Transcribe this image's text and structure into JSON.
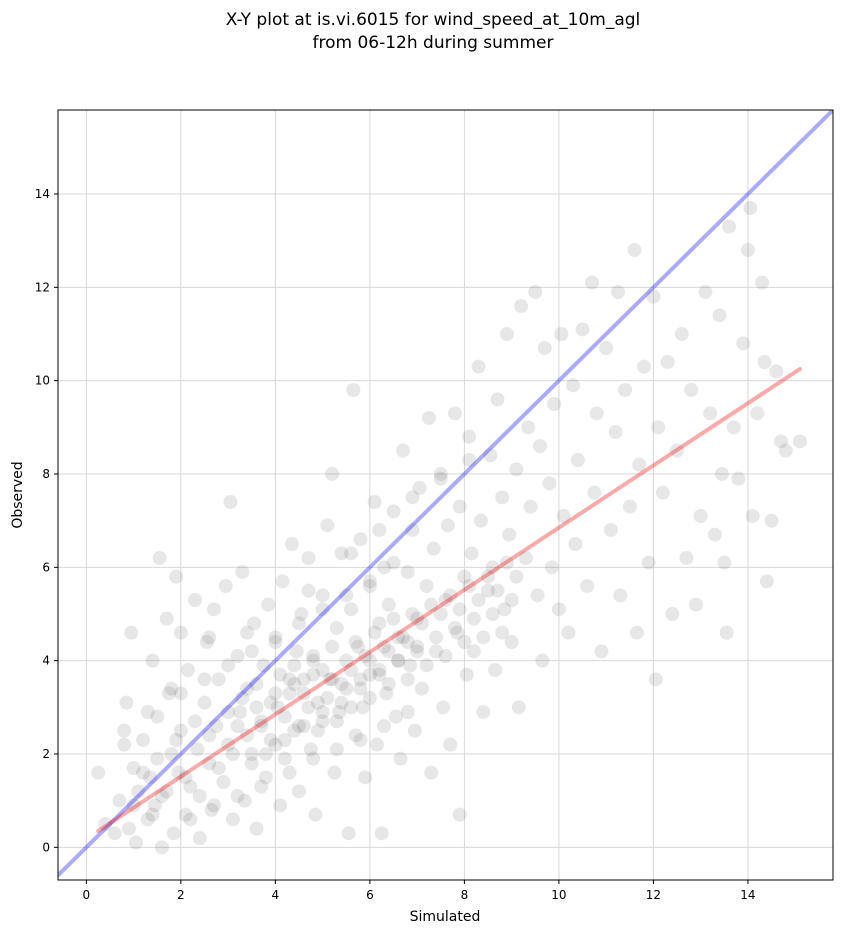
{
  "chart_data": {
    "type": "scatter",
    "title_lines": [
      "X-Y plot at is.vi.6015 for wind_speed_at_10m_agl",
      "from 06-12h during summer"
    ],
    "xlabel": "Simulated",
    "ylabel": "Observed",
    "xlim": [
      -0.6,
      15.8
    ],
    "ylim": [
      -0.7,
      15.8
    ],
    "xticks": [
      0,
      2,
      4,
      6,
      8,
      10,
      12,
      14
    ],
    "yticks": [
      0,
      2,
      4,
      6,
      8,
      10,
      12,
      14
    ],
    "grid": true,
    "marker_color": "#444444",
    "marker_alpha": 0.13,
    "lines": [
      {
        "kind": "one-to-one",
        "color": "#0000ee",
        "alpha": 0.33,
        "x": [
          -0.6,
          15.8
        ],
        "y": [
          -0.6,
          15.8
        ]
      },
      {
        "kind": "regression-fit",
        "color": "#ee0000",
        "alpha": 0.33,
        "x": [
          0.25,
          15.1
        ],
        "y": [
          0.35,
          10.25
        ]
      }
    ],
    "points": [
      [
        0.25,
        1.6
      ],
      [
        0.4,
        0.5
      ],
      [
        0.6,
        0.3
      ],
      [
        0.7,
        1.0
      ],
      [
        0.8,
        2.5
      ],
      [
        0.8,
        2.2
      ],
      [
        0.85,
        3.1
      ],
      [
        0.9,
        0.4
      ],
      [
        0.95,
        4.6
      ],
      [
        1.0,
        1.7
      ],
      [
        1.05,
        0.1
      ],
      [
        1.1,
        1.2
      ],
      [
        1.2,
        2.3
      ],
      [
        1.3,
        0.6
      ],
      [
        1.35,
        1.5
      ],
      [
        1.4,
        4.0
      ],
      [
        1.45,
        0.9
      ],
      [
        1.5,
        2.8
      ],
      [
        1.55,
        6.2
      ],
      [
        1.6,
        1.1
      ],
      [
        1.6,
        0.0
      ],
      [
        1.7,
        4.9
      ],
      [
        1.75,
        3.3
      ],
      [
        1.8,
        2.0
      ],
      [
        1.85,
        0.3
      ],
      [
        1.9,
        5.8
      ],
      [
        1.95,
        1.6
      ],
      [
        2.0,
        4.6
      ],
      [
        2.0,
        2.5
      ],
      [
        2.1,
        0.7
      ],
      [
        2.15,
        3.8
      ],
      [
        2.2,
        1.3
      ],
      [
        2.3,
        5.3
      ],
      [
        2.35,
        2.1
      ],
      [
        2.4,
        0.2
      ],
      [
        2.5,
        3.1
      ],
      [
        2.55,
        4.4
      ],
      [
        2.6,
        1.8
      ],
      [
        2.65,
        0.8
      ],
      [
        2.7,
        5.1
      ],
      [
        2.75,
        2.6
      ],
      [
        2.8,
        3.6
      ],
      [
        2.9,
        1.4
      ],
      [
        2.95,
        5.6
      ],
      [
        3.0,
        2.2
      ],
      [
        3.05,
        7.4
      ],
      [
        3.1,
        0.6
      ],
      [
        3.2,
        4.1
      ],
      [
        3.25,
        2.9
      ],
      [
        3.3,
        5.9
      ],
      [
        3.35,
        1.0
      ],
      [
        3.4,
        3.4
      ],
      [
        3.5,
        2.0
      ],
      [
        3.55,
        4.8
      ],
      [
        3.6,
        0.4
      ],
      [
        3.7,
        2.7
      ],
      [
        3.75,
        3.9
      ],
      [
        3.8,
        1.5
      ],
      [
        3.85,
        5.2
      ],
      [
        3.9,
        2.3
      ],
      [
        4.0,
        4.5
      ],
      [
        4.05,
        3.0
      ],
      [
        4.1,
        0.9
      ],
      [
        4.15,
        5.7
      ],
      [
        4.2,
        1.9
      ],
      [
        4.3,
        3.6
      ],
      [
        4.35,
        6.5
      ],
      [
        4.4,
        2.5
      ],
      [
        4.45,
        4.2
      ],
      [
        4.5,
        1.2
      ],
      [
        4.55,
        5.0
      ],
      [
        4.6,
        3.3
      ],
      [
        4.7,
        6.2
      ],
      [
        4.75,
        2.1
      ],
      [
        4.8,
        4.0
      ],
      [
        4.85,
        0.7
      ],
      [
        4.9,
        3.1
      ],
      [
        5.0,
        5.4
      ],
      [
        5.0,
        2.7
      ],
      [
        5.1,
        6.9
      ],
      [
        5.15,
        3.6
      ],
      [
        5.2,
        8.0
      ],
      [
        5.25,
        1.6
      ],
      [
        5.3,
        4.7
      ],
      [
        5.35,
        2.9
      ],
      [
        5.4,
        6.3
      ],
      [
        5.5,
        3.4
      ],
      [
        5.55,
        0.3
      ],
      [
        5.6,
        5.1
      ],
      [
        5.65,
        9.8
      ],
      [
        5.7,
        2.4
      ],
      [
        5.75,
        4.3
      ],
      [
        5.8,
        6.6
      ],
      [
        5.85,
        3.0
      ],
      [
        5.9,
        1.5
      ],
      [
        6.0,
        5.6
      ],
      [
        6.0,
        3.7
      ],
      [
        6.1,
        7.4
      ],
      [
        6.15,
        2.2
      ],
      [
        6.2,
        4.8
      ],
      [
        6.25,
        0.3
      ],
      [
        6.3,
        6.0
      ],
      [
        6.35,
        3.3
      ],
      [
        6.4,
        5.2
      ],
      [
        6.5,
        7.2
      ],
      [
        6.55,
        2.8
      ],
      [
        6.6,
        4.5
      ],
      [
        6.65,
        1.9
      ],
      [
        6.7,
        8.5
      ],
      [
        6.8,
        5.9
      ],
      [
        6.85,
        3.9
      ],
      [
        6.9,
        6.8
      ],
      [
        6.95,
        2.5
      ],
      [
        7.0,
        4.9
      ],
      [
        7.05,
        7.7
      ],
      [
        7.1,
        3.4
      ],
      [
        7.2,
        5.6
      ],
      [
        7.25,
        9.2
      ],
      [
        7.3,
        1.6
      ],
      [
        7.35,
        6.4
      ],
      [
        7.4,
        4.2
      ],
      [
        7.5,
        8.0
      ],
      [
        7.55,
        3.0
      ],
      [
        7.6,
        5.3
      ],
      [
        7.65,
        6.9
      ],
      [
        7.7,
        2.2
      ],
      [
        7.8,
        9.3
      ],
      [
        7.85,
        4.6
      ],
      [
        7.9,
        7.3
      ],
      [
        7.9,
        0.7
      ],
      [
        8.0,
        5.8
      ],
      [
        8.05,
        3.7
      ],
      [
        8.1,
        8.8
      ],
      [
        8.15,
        6.3
      ],
      [
        8.2,
        4.2
      ],
      [
        8.3,
        10.3
      ],
      [
        8.35,
        7.0
      ],
      [
        8.4,
        2.9
      ],
      [
        8.5,
        5.5
      ],
      [
        8.55,
        8.4
      ],
      [
        8.6,
        6.0
      ],
      [
        8.65,
        3.8
      ],
      [
        8.7,
        9.6
      ],
      [
        8.8,
        7.5
      ],
      [
        8.85,
        5.1
      ],
      [
        8.9,
        11.0
      ],
      [
        8.95,
        6.7
      ],
      [
        9.0,
        4.4
      ],
      [
        9.1,
        8.1
      ],
      [
        9.15,
        3.0
      ],
      [
        9.2,
        11.6
      ],
      [
        9.3,
        6.2
      ],
      [
        9.35,
        9.0
      ],
      [
        9.4,
        7.3
      ],
      [
        9.5,
        11.9
      ],
      [
        9.55,
        5.4
      ],
      [
        9.6,
        8.6
      ],
      [
        9.65,
        4.0
      ],
      [
        9.7,
        10.7
      ],
      [
        9.8,
        7.8
      ],
      [
        9.85,
        6.0
      ],
      [
        9.9,
        9.5
      ],
      [
        10.0,
        5.1
      ],
      [
        10.05,
        11.0
      ],
      [
        10.1,
        7.1
      ],
      [
        10.2,
        4.6
      ],
      [
        10.3,
        9.9
      ],
      [
        10.35,
        6.5
      ],
      [
        10.4,
        8.3
      ],
      [
        10.5,
        11.1
      ],
      [
        10.6,
        5.6
      ],
      [
        10.7,
        12.1
      ],
      [
        10.75,
        7.6
      ],
      [
        10.8,
        9.3
      ],
      [
        10.9,
        4.2
      ],
      [
        11.0,
        10.7
      ],
      [
        11.1,
        6.8
      ],
      [
        11.2,
        8.9
      ],
      [
        11.25,
        11.9
      ],
      [
        11.3,
        5.4
      ],
      [
        11.4,
        9.8
      ],
      [
        11.5,
        7.3
      ],
      [
        11.6,
        12.8
      ],
      [
        11.65,
        4.6
      ],
      [
        11.7,
        8.2
      ],
      [
        11.8,
        10.3
      ],
      [
        11.9,
        6.1
      ],
      [
        12.0,
        11.8
      ],
      [
        12.05,
        3.6
      ],
      [
        12.1,
        9.0
      ],
      [
        12.2,
        7.6
      ],
      [
        12.3,
        10.4
      ],
      [
        12.4,
        5.0
      ],
      [
        12.5,
        8.5
      ],
      [
        12.6,
        11.0
      ],
      [
        12.7,
        6.2
      ],
      [
        12.8,
        9.8
      ],
      [
        12.9,
        5.2
      ],
      [
        13.0,
        7.1
      ],
      [
        13.1,
        11.9
      ],
      [
        13.2,
        9.3
      ],
      [
        13.3,
        6.7
      ],
      [
        13.4,
        11.4
      ],
      [
        13.45,
        8.0
      ],
      [
        13.5,
        6.1
      ],
      [
        13.55,
        4.6
      ],
      [
        13.6,
        13.3
      ],
      [
        13.7,
        9.0
      ],
      [
        13.8,
        7.9
      ],
      [
        13.9,
        10.8
      ],
      [
        14.0,
        12.8
      ],
      [
        14.05,
        13.7
      ],
      [
        14.1,
        7.1
      ],
      [
        14.2,
        9.3
      ],
      [
        14.3,
        12.1
      ],
      [
        14.35,
        10.4
      ],
      [
        14.4,
        5.7
      ],
      [
        14.5,
        7.0
      ],
      [
        14.6,
        10.2
      ],
      [
        14.7,
        8.7
      ],
      [
        14.8,
        8.5
      ],
      [
        15.1,
        8.7
      ],
      [
        1.0,
        0.9
      ],
      [
        1.2,
        1.6
      ],
      [
        1.4,
        0.7
      ],
      [
        1.5,
        1.9
      ],
      [
        1.7,
        1.2
      ],
      [
        1.9,
        2.3
      ],
      [
        2.1,
        1.5
      ],
      [
        2.3,
        2.7
      ],
      [
        2.4,
        1.1
      ],
      [
        2.6,
        2.4
      ],
      [
        2.8,
        1.7
      ],
      [
        3.0,
        2.9
      ],
      [
        3.1,
        2.0
      ],
      [
        3.3,
        3.2
      ],
      [
        3.4,
        2.4
      ],
      [
        3.6,
        3.5
      ],
      [
        3.7,
        2.6
      ],
      [
        3.9,
        3.1
      ],
      [
        4.0,
        2.2
      ],
      [
        4.1,
        3.7
      ],
      [
        4.2,
        2.8
      ],
      [
        4.3,
        3.3
      ],
      [
        4.4,
        3.9
      ],
      [
        4.5,
        2.6
      ],
      [
        4.6,
        3.6
      ],
      [
        4.7,
        3.0
      ],
      [
        4.8,
        4.1
      ],
      [
        4.9,
        2.5
      ],
      [
        5.0,
        3.8
      ],
      [
        5.1,
        3.2
      ],
      [
        5.2,
        4.3
      ],
      [
        5.3,
        2.7
      ],
      [
        5.4,
        3.5
      ],
      [
        5.5,
        4.0
      ],
      [
        5.6,
        3.0
      ],
      [
        5.7,
        4.4
      ],
      [
        5.8,
        3.6
      ],
      [
        5.9,
        4.1
      ],
      [
        6.0,
        3.2
      ],
      [
        6.1,
        4.6
      ],
      [
        6.2,
        3.8
      ],
      [
        6.3,
        4.3
      ],
      [
        6.4,
        3.5
      ],
      [
        6.5,
        4.9
      ],
      [
        6.6,
        4.0
      ],
      [
        6.7,
        4.5
      ],
      [
        6.8,
        3.6
      ],
      [
        6.9,
        5.0
      ],
      [
        7.0,
        4.2
      ],
      [
        7.1,
        4.8
      ],
      [
        7.2,
        3.9
      ],
      [
        7.3,
        5.2
      ],
      [
        7.4,
        4.5
      ],
      [
        7.5,
        5.0
      ],
      [
        7.6,
        4.1
      ],
      [
        7.7,
        5.4
      ],
      [
        7.8,
        4.7
      ],
      [
        7.9,
        5.1
      ],
      [
        8.0,
        4.4
      ],
      [
        8.1,
        5.6
      ],
      [
        8.2,
        4.9
      ],
      [
        8.3,
        5.3
      ],
      [
        8.4,
        4.5
      ],
      [
        8.5,
        5.8
      ],
      [
        8.6,
        5.0
      ],
      [
        8.7,
        5.5
      ],
      [
        8.8,
        4.6
      ],
      [
        8.9,
        6.1
      ],
      [
        9.0,
        5.3
      ],
      [
        9.1,
        5.8
      ],
      [
        3.5,
        1.8
      ],
      [
        3.8,
        2.0
      ],
      [
        4.2,
        2.3
      ],
      [
        4.6,
        2.6
      ],
      [
        5.0,
        2.9
      ],
      [
        5.4,
        3.1
      ],
      [
        5.8,
        3.4
      ],
      [
        6.2,
        3.7
      ],
      [
        6.6,
        4.0
      ],
      [
        7.0,
        4.3
      ],
      [
        3.2,
        2.6
      ],
      [
        3.6,
        3.0
      ],
      [
        4.0,
        3.3
      ],
      [
        4.4,
        3.5
      ],
      [
        4.8,
        3.7
      ],
      [
        5.2,
        3.6
      ],
      [
        5.6,
        3.8
      ],
      [
        6.0,
        4.0
      ],
      [
        6.4,
        4.2
      ],
      [
        6.8,
        4.4
      ],
      [
        2.2,
        0.6
      ],
      [
        2.7,
        0.9
      ],
      [
        3.2,
        1.1
      ],
      [
        3.7,
        1.3
      ],
      [
        4.3,
        1.6
      ],
      [
        4.8,
        1.9
      ],
      [
        5.3,
        2.1
      ],
      [
        5.8,
        2.3
      ],
      [
        6.3,
        2.6
      ],
      [
        6.8,
        2.9
      ],
      [
        2.0,
        3.3
      ],
      [
        2.5,
        3.6
      ],
      [
        3.0,
        3.9
      ],
      [
        3.5,
        4.2
      ],
      [
        4.0,
        4.4
      ],
      [
        4.5,
        4.8
      ],
      [
        5.0,
        5.1
      ],
      [
        5.5,
        5.4
      ],
      [
        6.0,
        5.7
      ],
      [
        6.5,
        6.1
      ],
      [
        1.3,
        2.9
      ],
      [
        1.8,
        3.4
      ],
      [
        2.6,
        4.5
      ],
      [
        3.4,
        4.6
      ],
      [
        4.7,
        5.5
      ],
      [
        5.6,
        6.3
      ],
      [
        6.2,
        6.8
      ],
      [
        6.9,
        7.5
      ],
      [
        7.5,
        7.9
      ],
      [
        8.1,
        8.3
      ]
    ]
  }
}
